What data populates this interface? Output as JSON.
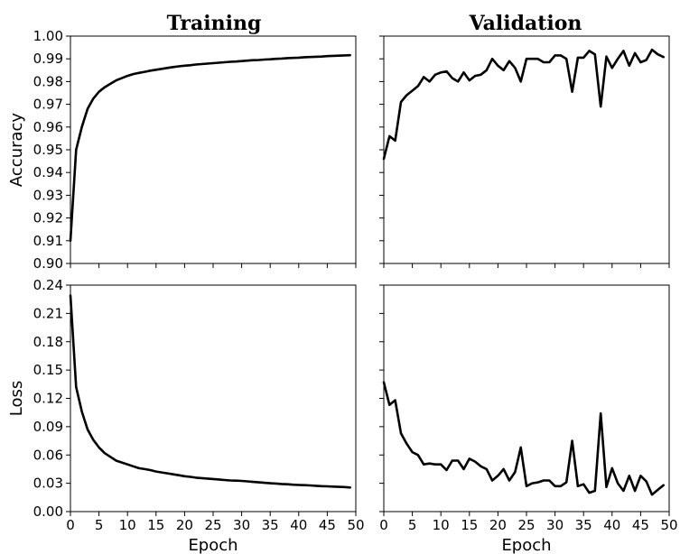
{
  "column_titles": {
    "left": "Training",
    "right": "Validation"
  },
  "chart_data": [
    {
      "type": "line",
      "panel": "training-accuracy",
      "title": "Training",
      "xlabel": "",
      "ylabel": "Accuracy",
      "xlim": [
        0,
        50
      ],
      "ylim": [
        0.9,
        1.0
      ],
      "xticks": [
        0,
        5,
        10,
        15,
        20,
        25,
        30,
        35,
        40,
        45,
        50
      ],
      "yticks": [
        "0.90",
        "0.91",
        "0.92",
        "0.93",
        "0.94",
        "0.95",
        "0.96",
        "0.97",
        "0.98",
        "0.99",
        "1.00"
      ],
      "show_xtick_labels": false,
      "show_ytick_labels": true,
      "x": [
        0,
        1,
        2,
        3,
        4,
        5,
        6,
        7,
        8,
        9,
        10,
        11,
        12,
        13,
        14,
        15,
        16,
        17,
        18,
        19,
        20,
        21,
        22,
        23,
        24,
        25,
        26,
        27,
        28,
        29,
        30,
        31,
        32,
        33,
        34,
        35,
        36,
        37,
        38,
        39,
        40,
        41,
        42,
        43,
        44,
        45,
        46,
        47,
        48,
        49
      ],
      "y": [
        0.91,
        0.95,
        0.96,
        0.968,
        0.9725,
        0.9755,
        0.9775,
        0.979,
        0.9805,
        0.9815,
        0.9825,
        0.9833,
        0.9838,
        0.9843,
        0.9848,
        0.9852,
        0.9856,
        0.986,
        0.9864,
        0.9867,
        0.987,
        0.9872,
        0.9875,
        0.9877,
        0.9879,
        0.9881,
        0.9883,
        0.9885,
        0.9887,
        0.9888,
        0.989,
        0.9892,
        0.9894,
        0.9895,
        0.9897,
        0.9898,
        0.99,
        0.9901,
        0.9903,
        0.9904,
        0.9905,
        0.9907,
        0.9908,
        0.9909,
        0.991,
        0.9912,
        0.9913,
        0.9914,
        0.9915,
        0.9916
      ]
    },
    {
      "type": "line",
      "panel": "validation-accuracy",
      "title": "Validation",
      "xlabel": "",
      "ylabel": "",
      "xlim": [
        0,
        50
      ],
      "ylim": [
        0.9,
        1.0
      ],
      "xticks": [
        0,
        5,
        10,
        15,
        20,
        25,
        30,
        35,
        40,
        45,
        50
      ],
      "yticks": [
        "0.90",
        "0.91",
        "0.92",
        "0.93",
        "0.94",
        "0.95",
        "0.96",
        "0.97",
        "0.98",
        "0.99",
        "1.00"
      ],
      "show_xtick_labels": false,
      "show_ytick_labels": false,
      "x": [
        0,
        1,
        2,
        3,
        4,
        5,
        6,
        7,
        8,
        9,
        10,
        11,
        12,
        13,
        14,
        15,
        16,
        17,
        18,
        19,
        20,
        21,
        22,
        23,
        24,
        25,
        26,
        27,
        28,
        29,
        30,
        31,
        32,
        33,
        34,
        35,
        36,
        37,
        38,
        39,
        40,
        41,
        42,
        43,
        44,
        45,
        46,
        47,
        48,
        49
      ],
      "y": [
        0.946,
        0.956,
        0.954,
        0.971,
        0.974,
        0.976,
        0.978,
        0.982,
        0.98,
        0.983,
        0.984,
        0.9845,
        0.9815,
        0.98,
        0.984,
        0.9805,
        0.9825,
        0.983,
        0.985,
        0.99,
        0.987,
        0.985,
        0.989,
        0.986,
        0.98,
        0.99,
        0.99,
        0.99,
        0.9885,
        0.9885,
        0.9915,
        0.9915,
        0.99,
        0.9755,
        0.9905,
        0.9905,
        0.9935,
        0.992,
        0.969,
        0.991,
        0.986,
        0.99,
        0.9935,
        0.987,
        0.9925,
        0.9885,
        0.9895,
        0.994,
        0.992,
        0.9908
      ]
    },
    {
      "type": "line",
      "panel": "training-loss",
      "title": "",
      "xlabel": "Epoch",
      "ylabel": "Loss",
      "xlim": [
        0,
        50
      ],
      "ylim": [
        0.0,
        0.24
      ],
      "xticks": [
        0,
        5,
        10,
        15,
        20,
        25,
        30,
        35,
        40,
        45,
        50
      ],
      "yticks": [
        "0.00",
        "0.03",
        "0.06",
        "0.09",
        "0.12",
        "0.15",
        "0.18",
        "0.21",
        "0.24"
      ],
      "show_xtick_labels": true,
      "show_ytick_labels": true,
      "x": [
        0,
        1,
        2,
        3,
        4,
        5,
        6,
        7,
        8,
        9,
        10,
        11,
        12,
        13,
        14,
        15,
        16,
        17,
        18,
        19,
        20,
        21,
        22,
        23,
        24,
        25,
        26,
        27,
        28,
        29,
        30,
        31,
        32,
        33,
        34,
        35,
        36,
        37,
        38,
        39,
        40,
        41,
        42,
        43,
        44,
        45,
        46,
        47,
        48,
        49
      ],
      "y": [
        0.229,
        0.132,
        0.106,
        0.087,
        0.076,
        0.068,
        0.062,
        0.058,
        0.054,
        0.052,
        0.05,
        0.048,
        0.046,
        0.045,
        0.044,
        0.0425,
        0.0415,
        0.0405,
        0.0395,
        0.0385,
        0.0375,
        0.0368,
        0.036,
        0.0355,
        0.035,
        0.0345,
        0.034,
        0.0335,
        0.033,
        0.0328,
        0.0325,
        0.032,
        0.0315,
        0.031,
        0.0305,
        0.03,
        0.0297,
        0.0293,
        0.029,
        0.0285,
        0.0282,
        0.028,
        0.0277,
        0.0273,
        0.027,
        0.0268,
        0.0265,
        0.0262,
        0.026,
        0.0255
      ]
    },
    {
      "type": "line",
      "panel": "validation-loss",
      "title": "",
      "xlabel": "Epoch",
      "ylabel": "",
      "xlim": [
        0,
        50
      ],
      "ylim": [
        0.0,
        0.24
      ],
      "xticks": [
        0,
        5,
        10,
        15,
        20,
        25,
        30,
        35,
        40,
        45,
        50
      ],
      "yticks": [
        "0.00",
        "0.03",
        "0.06",
        "0.09",
        "0.12",
        "0.15",
        "0.18",
        "0.21",
        "0.24"
      ],
      "show_xtick_labels": true,
      "show_ytick_labels": false,
      "x": [
        0,
        1,
        2,
        3,
        4,
        5,
        6,
        7,
        8,
        9,
        10,
        11,
        12,
        13,
        14,
        15,
        16,
        17,
        18,
        19,
        20,
        21,
        22,
        23,
        24,
        25,
        26,
        27,
        28,
        29,
        30,
        31,
        32,
        33,
        34,
        35,
        36,
        37,
        38,
        39,
        40,
        41,
        42,
        43,
        44,
        45,
        46,
        47,
        48,
        49
      ],
      "y": [
        0.137,
        0.113,
        0.118,
        0.083,
        0.072,
        0.063,
        0.06,
        0.05,
        0.051,
        0.05,
        0.05,
        0.044,
        0.054,
        0.054,
        0.045,
        0.056,
        0.053,
        0.048,
        0.045,
        0.033,
        0.038,
        0.045,
        0.033,
        0.042,
        0.068,
        0.027,
        0.03,
        0.031,
        0.033,
        0.033,
        0.027,
        0.027,
        0.031,
        0.075,
        0.027,
        0.029,
        0.02,
        0.022,
        0.104,
        0.026,
        0.046,
        0.03,
        0.022,
        0.038,
        0.022,
        0.038,
        0.032,
        0.018,
        0.023,
        0.028
      ]
    }
  ]
}
